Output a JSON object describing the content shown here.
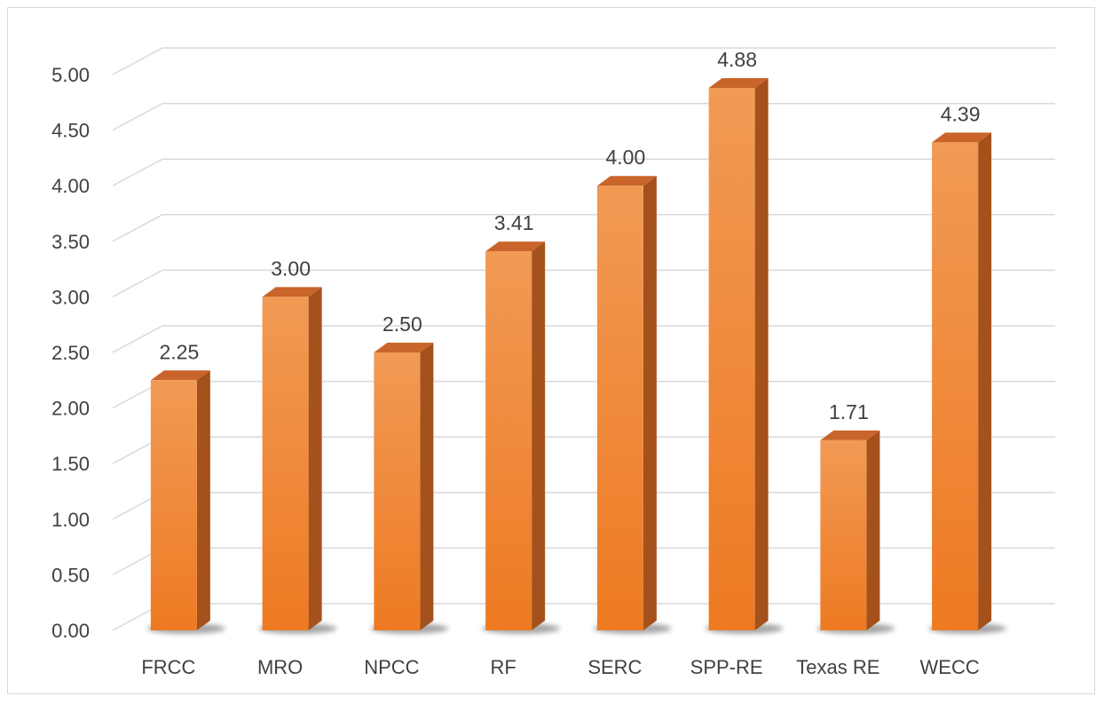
{
  "chart_data": {
    "type": "bar",
    "style": "3d-column",
    "categories": [
      "FRCC",
      "MRO",
      "NPCC",
      "RF",
      "SERC",
      "SPP-RE",
      "Texas RE",
      "WECC"
    ],
    "values": [
      2.25,
      3.0,
      2.5,
      3.41,
      4.0,
      4.88,
      1.71,
      4.39
    ],
    "data_labels": [
      "2.25",
      "3.00",
      "2.50",
      "3.41",
      "4.00",
      "4.88",
      "1.71",
      "4.39"
    ],
    "y_ticks": [
      "0.00",
      "0.50",
      "1.00",
      "1.50",
      "2.00",
      "2.50",
      "3.00",
      "3.50",
      "4.00",
      "4.50",
      "5.00"
    ],
    "ylim": [
      0,
      5
    ],
    "grid": true,
    "legend": "none",
    "title": "",
    "xlabel": "",
    "ylabel": "",
    "colors": {
      "bar_front_light": "#f19a55",
      "bar_front_dark": "#ee7a22",
      "bar_top": "#c9652a",
      "bar_side": "#a4511c",
      "grid": "#d9d9d9",
      "text": "#404040"
    }
  }
}
